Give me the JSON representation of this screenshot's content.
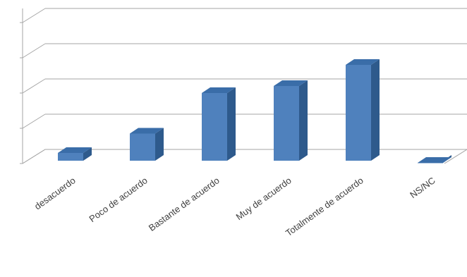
{
  "chart_data": {
    "type": "bar",
    "title": "",
    "xlabel": "",
    "ylabel": "",
    "categories": [
      "desacuerdo",
      "Poco de acuerdo",
      "Bastante de acuerdo",
      "Muy de acuerdo",
      "Totalmente de acuerdo",
      "NS/NC"
    ],
    "values": [
      0.3,
      0.85,
      2.0,
      2.2,
      2.8,
      0.02
    ],
    "ylim": [
      0,
      4.4
    ],
    "y_tick_interval": 1,
    "grid": true,
    "legend": "none",
    "three_d": true,
    "colors": {
      "bar_front": "#4F81BD",
      "bar_side": "#2E5A8C",
      "bar_top": "#3A6DA8",
      "grid": "#A6A6A6",
      "tick_text": "#404040"
    }
  }
}
